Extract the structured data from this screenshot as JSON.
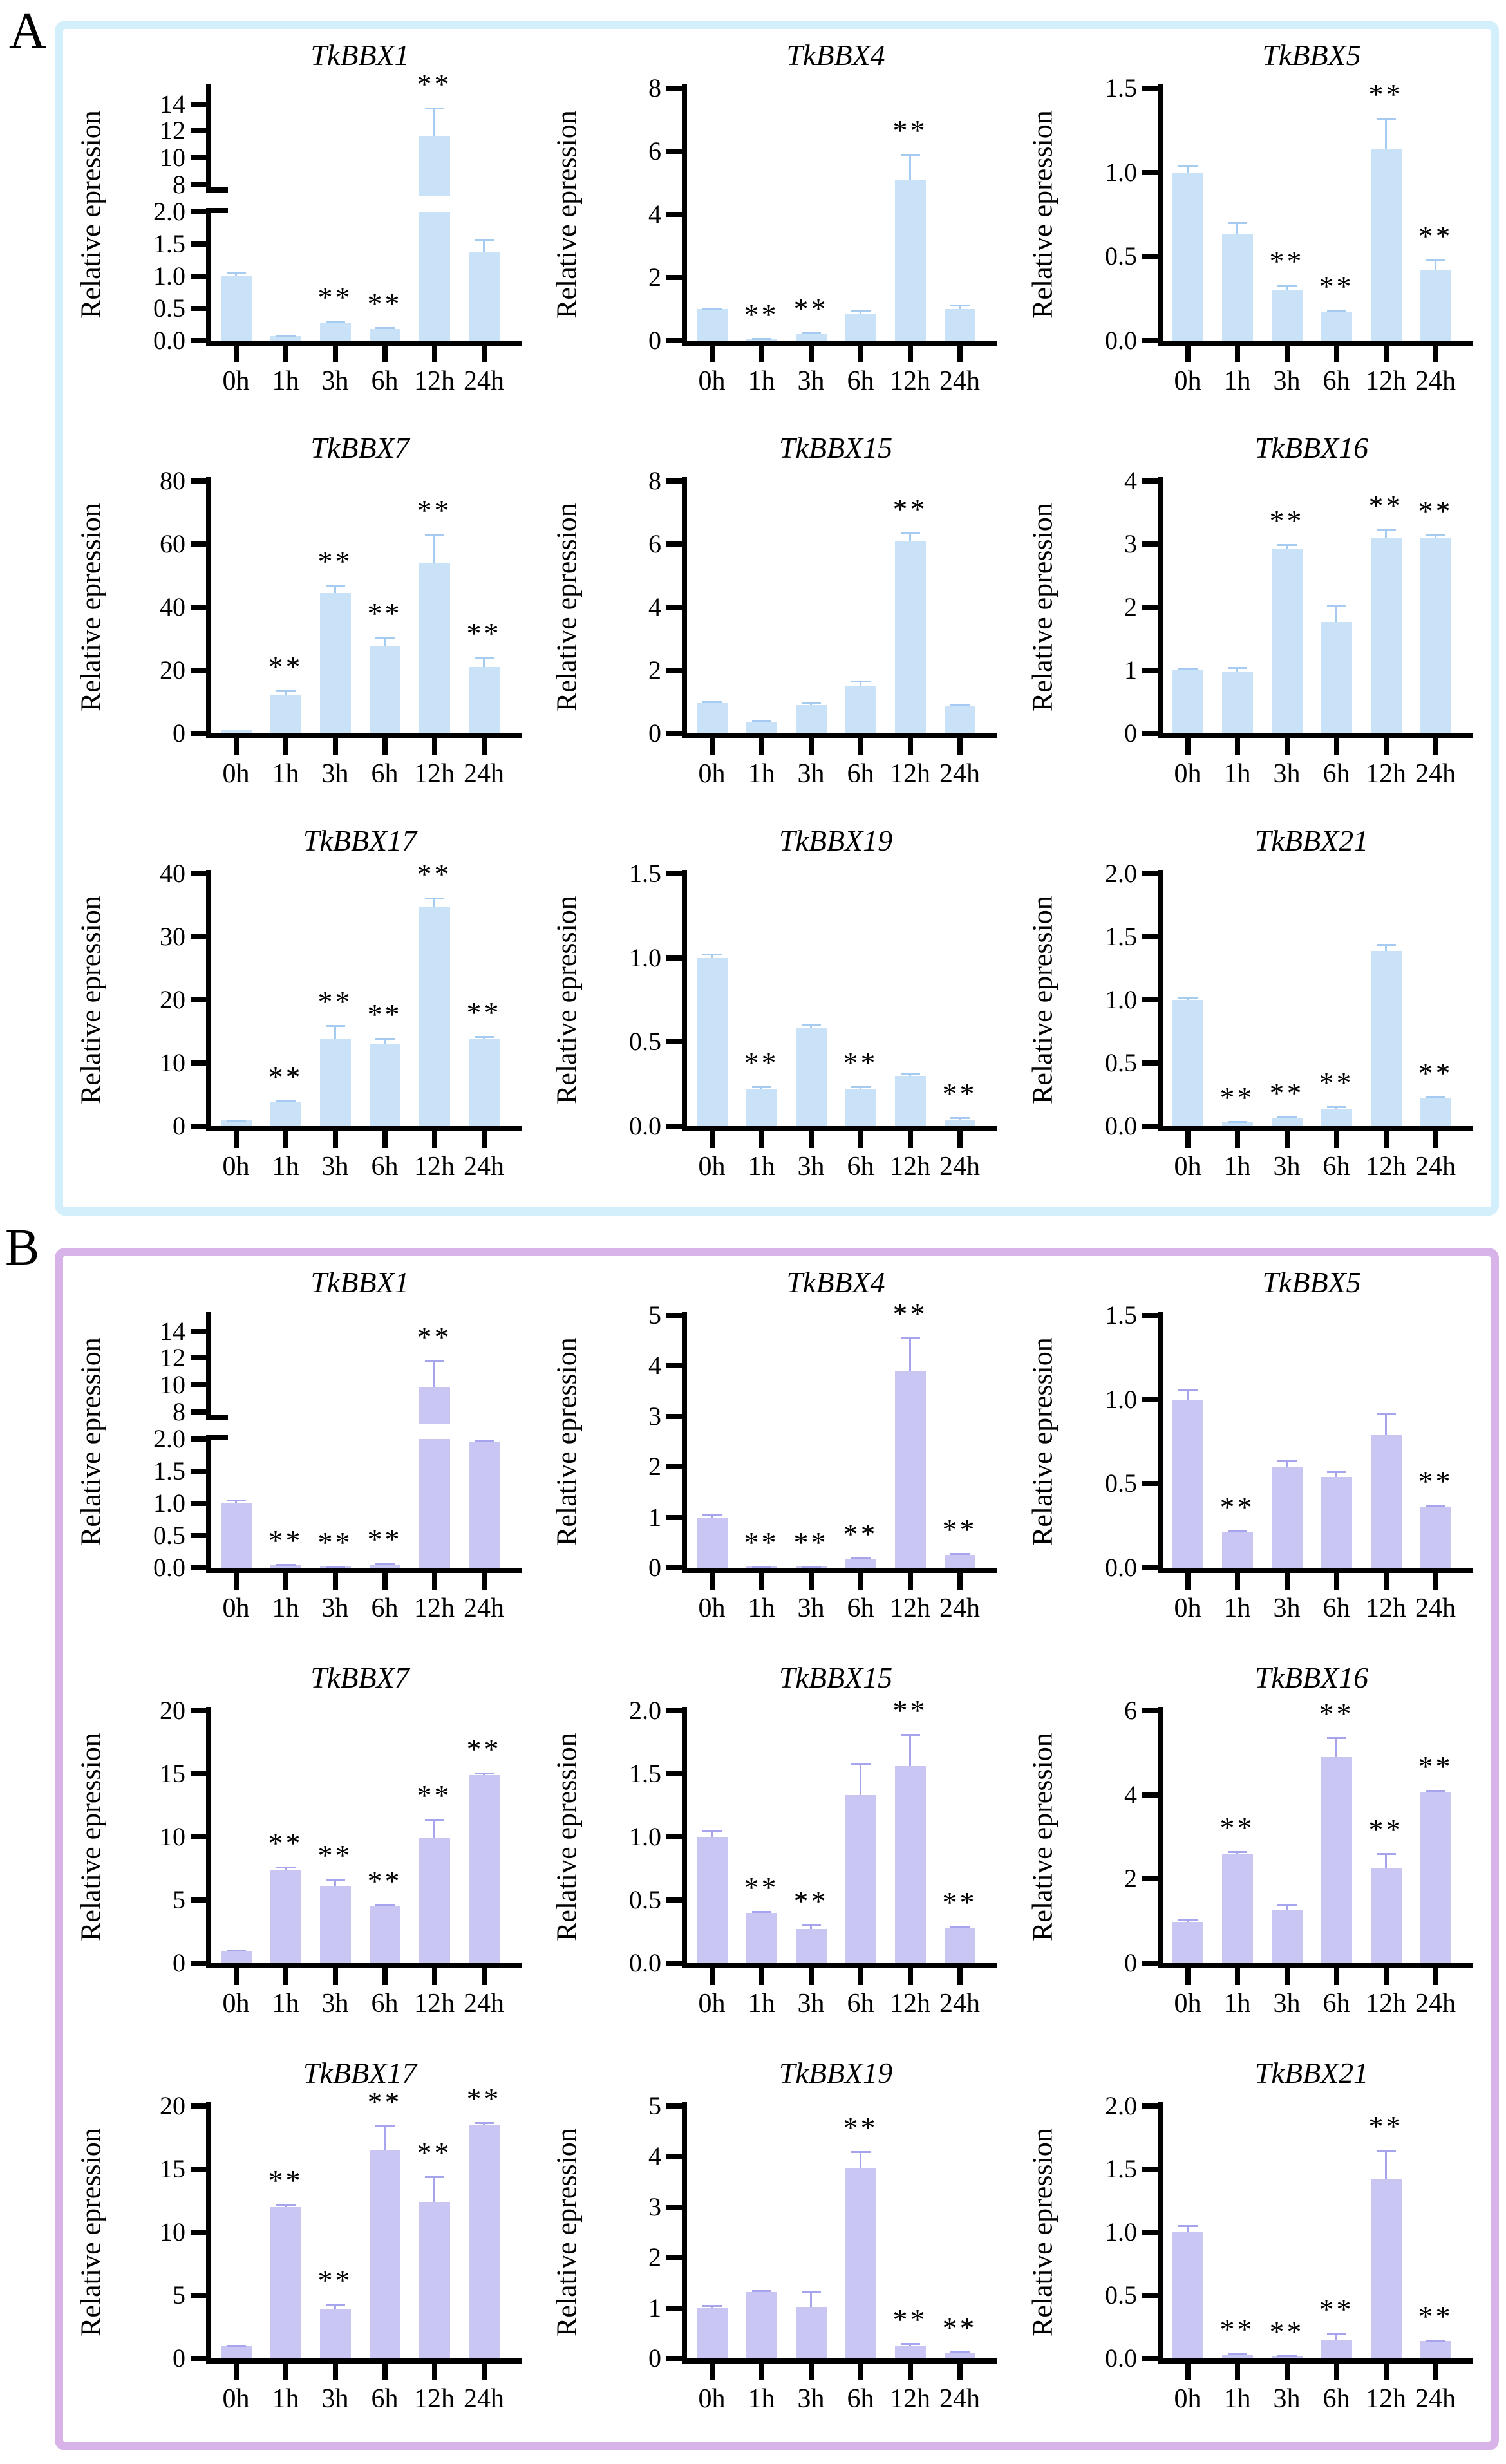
{
  "figure": {
    "panel_a_label": "A",
    "panel_b_label": "B",
    "ylabel": "Relative epression",
    "categories": [
      "0h",
      "1h",
      "3h",
      "6h",
      "12h",
      "24h"
    ],
    "sig_symbol": "**"
  },
  "panels": [
    {
      "label": "A",
      "border_color": "#d2effb",
      "bar_color": "#c9e2f8",
      "error_color": "#a6cbf0"
    },
    {
      "label": "B",
      "border_color": "#d8b3e9",
      "bar_color": "#c9c6f4",
      "error_color": "#a7a4ee"
    }
  ],
  "chart_data": [
    {
      "panel": "A",
      "type": "bar",
      "title": "TkBBX1",
      "ylabel": "Relative epression",
      "categories": [
        "0h",
        "1h",
        "3h",
        "6h",
        "12h",
        "24h"
      ],
      "broken_axis": true,
      "top_ylim": [
        7.4,
        15.2
      ],
      "top_yticks": [
        "8",
        "10",
        "12",
        "14"
      ],
      "bottom_ylim": [
        0,
        2
      ],
      "bottom_yticks": [
        "0.0",
        "0.5",
        "1.0",
        "1.5",
        "2.0"
      ],
      "values": [
        1.0,
        0.07,
        0.28,
        0.18,
        11.9,
        1.38
      ],
      "errors_top": [
        1.05,
        0.08,
        0.3,
        0.2,
        13.7,
        1.57
      ],
      "sig": [
        false,
        false,
        true,
        true,
        true,
        false
      ]
    },
    {
      "panel": "A",
      "type": "bar",
      "title": "TkBBX4",
      "ylabel": "Relative epression",
      "categories": [
        "0h",
        "1h",
        "3h",
        "6h",
        "12h",
        "24h"
      ],
      "ylim": [
        0,
        8
      ],
      "yticks": [
        "0",
        "2",
        "4",
        "6",
        "8"
      ],
      "values": [
        1.0,
        0.05,
        0.22,
        0.85,
        5.1,
        1.0
      ],
      "errors_top": [
        1.03,
        0.06,
        0.25,
        0.95,
        5.9,
        1.12
      ],
      "sig": [
        false,
        true,
        true,
        false,
        true,
        false
      ]
    },
    {
      "panel": "A",
      "type": "bar",
      "title": "TkBBX5",
      "ylabel": "Relative epression",
      "categories": [
        "0h",
        "1h",
        "3h",
        "6h",
        "12h",
        "24h"
      ],
      "ylim": [
        0,
        1.5
      ],
      "yticks": [
        "0.0",
        "0.5",
        "1.0",
        "1.5"
      ],
      "values": [
        1.0,
        0.63,
        0.3,
        0.17,
        1.14,
        0.42
      ],
      "errors_top": [
        1.04,
        0.7,
        0.33,
        0.18,
        1.32,
        0.48
      ],
      "sig": [
        false,
        false,
        true,
        true,
        true,
        true
      ]
    },
    {
      "panel": "A",
      "type": "bar",
      "title": "TkBBX7",
      "ylabel": "Relative epression",
      "categories": [
        "0h",
        "1h",
        "3h",
        "6h",
        "12h",
        "24h"
      ],
      "ylim": [
        0,
        80
      ],
      "yticks": [
        "0",
        "20",
        "40",
        "60",
        "80"
      ],
      "values": [
        1,
        12,
        44.5,
        27.5,
        54,
        21
      ],
      "errors_top": [
        1,
        13.5,
        47,
        30.5,
        63,
        24
      ],
      "sig": [
        false,
        true,
        true,
        true,
        true,
        true
      ]
    },
    {
      "panel": "A",
      "type": "bar",
      "title": "TkBBX15",
      "ylabel": "Relative epression",
      "categories": [
        "0h",
        "1h",
        "3h",
        "6h",
        "12h",
        "24h"
      ],
      "ylim": [
        0,
        8
      ],
      "yticks": [
        "0",
        "2",
        "4",
        "6",
        "8"
      ],
      "values": [
        0.95,
        0.35,
        0.9,
        1.5,
        6.1,
        0.88
      ],
      "errors_top": [
        1.0,
        0.38,
        0.97,
        1.65,
        6.35,
        0.9
      ],
      "sig": [
        false,
        false,
        false,
        false,
        true,
        false
      ]
    },
    {
      "panel": "A",
      "type": "bar",
      "title": "TkBBX16",
      "ylabel": "Relative epression",
      "categories": [
        "0h",
        "1h",
        "3h",
        "6h",
        "12h",
        "24h"
      ],
      "ylim": [
        0,
        4
      ],
      "yticks": [
        "0",
        "1",
        "2",
        "3",
        "4"
      ],
      "values": [
        1.0,
        0.97,
        2.93,
        1.77,
        3.1,
        3.1
      ],
      "errors_top": [
        1.03,
        1.04,
        2.99,
        2.02,
        3.22,
        3.14
      ],
      "sig": [
        false,
        false,
        true,
        false,
        true,
        true
      ]
    },
    {
      "panel": "A",
      "type": "bar",
      "title": "TkBBX17",
      "ylabel": "Relative epression",
      "categories": [
        "0h",
        "1h",
        "3h",
        "6h",
        "12h",
        "24h"
      ],
      "ylim": [
        0,
        40
      ],
      "yticks": [
        "0",
        "10",
        "20",
        "30",
        "40"
      ],
      "values": [
        0.9,
        3.8,
        13.8,
        13.1,
        34.8,
        13.9
      ],
      "errors_top": [
        0.92,
        4.0,
        15.9,
        13.9,
        36.1,
        14.2
      ],
      "sig": [
        false,
        true,
        true,
        true,
        true,
        true
      ]
    },
    {
      "panel": "A",
      "type": "bar",
      "title": "TkBBX19",
      "ylabel": "Relative epression",
      "categories": [
        "0h",
        "1h",
        "3h",
        "6h",
        "12h",
        "24h"
      ],
      "ylim": [
        0,
        1.5
      ],
      "yticks": [
        "0.0",
        "0.5",
        "1.0",
        "1.5"
      ],
      "values": [
        1.0,
        0.22,
        0.58,
        0.22,
        0.3,
        0.04
      ],
      "errors_top": [
        1.02,
        0.235,
        0.6,
        0.235,
        0.31,
        0.05
      ],
      "sig": [
        false,
        true,
        false,
        true,
        false,
        true
      ]
    },
    {
      "panel": "A",
      "type": "bar",
      "title": "TkBBX21",
      "ylabel": "Relative epression",
      "categories": [
        "0h",
        "1h",
        "3h",
        "6h",
        "12h",
        "24h"
      ],
      "ylim": [
        0,
        2
      ],
      "yticks": [
        "0.0",
        "0.5",
        "1.0",
        "1.5",
        "2.0"
      ],
      "values": [
        1.0,
        0.03,
        0.06,
        0.14,
        1.39,
        0.22
      ],
      "errors_top": [
        1.02,
        0.035,
        0.07,
        0.155,
        1.44,
        0.23
      ],
      "sig": [
        false,
        true,
        true,
        true,
        false,
        true
      ]
    },
    {
      "panel": "B",
      "type": "bar",
      "title": "TkBBX1",
      "ylabel": "Relative epression",
      "categories": [
        "0h",
        "1h",
        "3h",
        "6h",
        "12h",
        "24h"
      ],
      "broken_axis": true,
      "top_ylim": [
        7.4,
        15.2
      ],
      "top_yticks": [
        "8",
        "10",
        "12",
        "14"
      ],
      "bottom_ylim": [
        0,
        2
      ],
      "bottom_yticks": [
        "0.0",
        "0.5",
        "1.0",
        "1.5",
        "2.0"
      ],
      "values": [
        1.0,
        0.04,
        0.01,
        0.05,
        10.15,
        1.95
      ],
      "errors_top": [
        1.05,
        0.05,
        0.02,
        0.07,
        11.8,
        1.97
      ],
      "sig": [
        false,
        true,
        true,
        true,
        true,
        false
      ]
    },
    {
      "panel": "B",
      "type": "bar",
      "title": "TkBBX4",
      "ylabel": "Relative epression",
      "categories": [
        "0h",
        "1h",
        "3h",
        "6h",
        "12h",
        "24h"
      ],
      "ylim": [
        0,
        5
      ],
      "yticks": [
        "0",
        "1",
        "2",
        "3",
        "4",
        "5"
      ],
      "values": [
        1.0,
        0.02,
        0.01,
        0.17,
        3.9,
        0.25
      ],
      "errors_top": [
        1.06,
        0.03,
        0.02,
        0.19,
        4.55,
        0.28
      ],
      "sig": [
        false,
        true,
        true,
        true,
        true,
        true
      ]
    },
    {
      "panel": "B",
      "type": "bar",
      "title": "TkBBX5",
      "ylabel": "Relative epression",
      "categories": [
        "0h",
        "1h",
        "3h",
        "6h",
        "12h",
        "24h"
      ],
      "ylim": [
        0,
        1.5
      ],
      "yticks": [
        "0.0",
        "0.5",
        "1.0",
        "1.5"
      ],
      "values": [
        1.0,
        0.21,
        0.6,
        0.54,
        0.79,
        0.36
      ],
      "errors_top": [
        1.06,
        0.22,
        0.64,
        0.57,
        0.92,
        0.37
      ],
      "sig": [
        false,
        true,
        false,
        false,
        false,
        true
      ]
    },
    {
      "panel": "B",
      "type": "bar",
      "title": "TkBBX7",
      "ylabel": "Relative epression",
      "categories": [
        "0h",
        "1h",
        "3h",
        "6h",
        "12h",
        "24h"
      ],
      "ylim": [
        0,
        20
      ],
      "yticks": [
        "0",
        "5",
        "10",
        "15",
        "20"
      ],
      "values": [
        0.95,
        7.4,
        6.1,
        4.5,
        9.9,
        14.9
      ],
      "errors_top": [
        1.0,
        7.6,
        6.65,
        4.6,
        11.4,
        15.05
      ],
      "sig": [
        false,
        true,
        true,
        true,
        true,
        true
      ]
    },
    {
      "panel": "B",
      "type": "bar",
      "title": "TkBBX15",
      "ylabel": "Relative epression",
      "categories": [
        "0h",
        "1h",
        "3h",
        "6h",
        "12h",
        "24h"
      ],
      "ylim": [
        0,
        2
      ],
      "yticks": [
        "0.0",
        "0.5",
        "1.0",
        "1.5",
        "2.0"
      ],
      "values": [
        1.0,
        0.4,
        0.27,
        1.33,
        1.56,
        0.28
      ],
      "errors_top": [
        1.05,
        0.41,
        0.3,
        1.58,
        1.81,
        0.29
      ],
      "sig": [
        false,
        true,
        true,
        false,
        true,
        true
      ]
    },
    {
      "panel": "B",
      "type": "bar",
      "title": "TkBBX16",
      "ylabel": "Relative epression",
      "categories": [
        "0h",
        "1h",
        "3h",
        "6h",
        "12h",
        "24h"
      ],
      "ylim": [
        0,
        6
      ],
      "yticks": [
        "0",
        "2",
        "4",
        "6"
      ],
      "values": [
        0.98,
        2.6,
        1.25,
        4.9,
        2.25,
        4.05
      ],
      "errors_top": [
        1.03,
        2.65,
        1.4,
        5.35,
        2.6,
        4.1
      ],
      "sig": [
        false,
        true,
        false,
        true,
        true,
        true
      ]
    },
    {
      "panel": "B",
      "type": "bar",
      "title": "TkBBX17",
      "ylabel": "Relative epression",
      "categories": [
        "0h",
        "1h",
        "3h",
        "6h",
        "12h",
        "24h"
      ],
      "ylim": [
        0,
        20
      ],
      "yticks": [
        "0",
        "5",
        "10",
        "15",
        "20"
      ],
      "values": [
        0.95,
        12.0,
        3.9,
        16.5,
        12.4,
        18.5
      ],
      "errors_top": [
        1.0,
        12.2,
        4.3,
        18.4,
        14.4,
        18.65
      ],
      "sig": [
        false,
        true,
        true,
        true,
        true,
        true
      ]
    },
    {
      "panel": "B",
      "type": "bar",
      "title": "TkBBX19",
      "ylabel": "Relative epression",
      "categories": [
        "0h",
        "1h",
        "3h",
        "6h",
        "12h",
        "24h"
      ],
      "ylim": [
        0,
        5
      ],
      "yticks": [
        "0",
        "1",
        "2",
        "3",
        "4",
        "5"
      ],
      "values": [
        1.0,
        1.32,
        1.02,
        3.78,
        0.25,
        0.12
      ],
      "errors_top": [
        1.05,
        1.34,
        1.32,
        4.1,
        0.29,
        0.13
      ],
      "sig": [
        false,
        false,
        false,
        true,
        true,
        true
      ]
    },
    {
      "panel": "B",
      "type": "bar",
      "title": "TkBBX21",
      "ylabel": "Relative epression",
      "categories": [
        "0h",
        "1h",
        "3h",
        "6h",
        "12h",
        "24h"
      ],
      "ylim": [
        0,
        2
      ],
      "yticks": [
        "0.0",
        "0.5",
        "1.0",
        "1.5",
        "2.0"
      ],
      "values": [
        1.0,
        0.03,
        0.01,
        0.15,
        1.42,
        0.14
      ],
      "errors_top": [
        1.05,
        0.04,
        0.02,
        0.2,
        1.65,
        0.145
      ],
      "sig": [
        false,
        true,
        true,
        true,
        true,
        true
      ]
    }
  ]
}
